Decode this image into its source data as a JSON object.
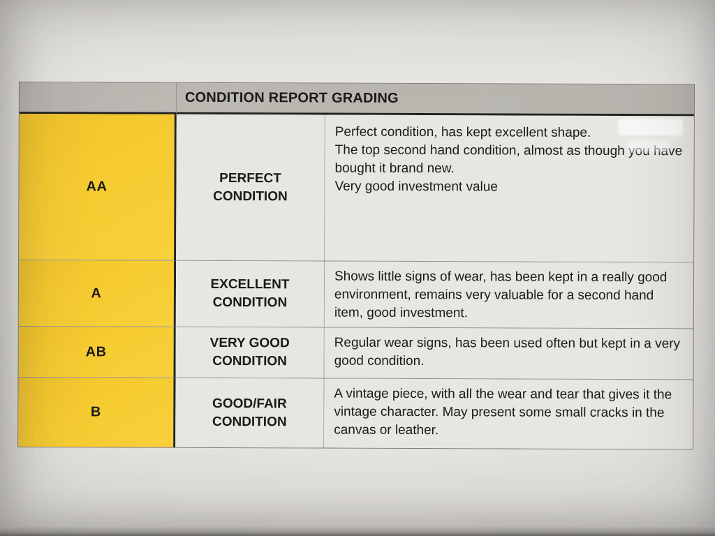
{
  "document": {
    "title": "CONDITION REPORT GRADING",
    "rows": [
      {
        "grade": "AA",
        "condition": "PERFECT CONDITION",
        "paragraphs": [
          "Perfect condition, has kept excellent shape.",
          "The top second hand condition, almost as though you have bought it brand new.",
          "Very good investment value"
        ]
      },
      {
        "grade": "A",
        "condition": "EXCELLENT CONDITION",
        "paragraphs": [
          "Shows little signs of wear, has been kept in a really good environment, remains very valuable for a second hand item, good investment."
        ]
      },
      {
        "grade": "AB",
        "condition": "VERY GOOD CONDITION",
        "paragraphs": [
          "Regular wear signs, has been used often but kept in a very good condition."
        ]
      },
      {
        "grade": "B",
        "condition": "GOOD/FAIR CONDITION",
        "paragraphs": [
          "A vintage piece, with all the wear and tear that gives it the vintage character. May present some small cracks in the canvas or leather."
        ]
      }
    ],
    "colors": {
      "header_bg": "#b9b6b0",
      "grade_bg": "#f5c92f",
      "cell_bg": "#e8e6e3",
      "border_dark": "#232220",
      "border_light": "#908d88",
      "text": "#1b1a18"
    }
  }
}
